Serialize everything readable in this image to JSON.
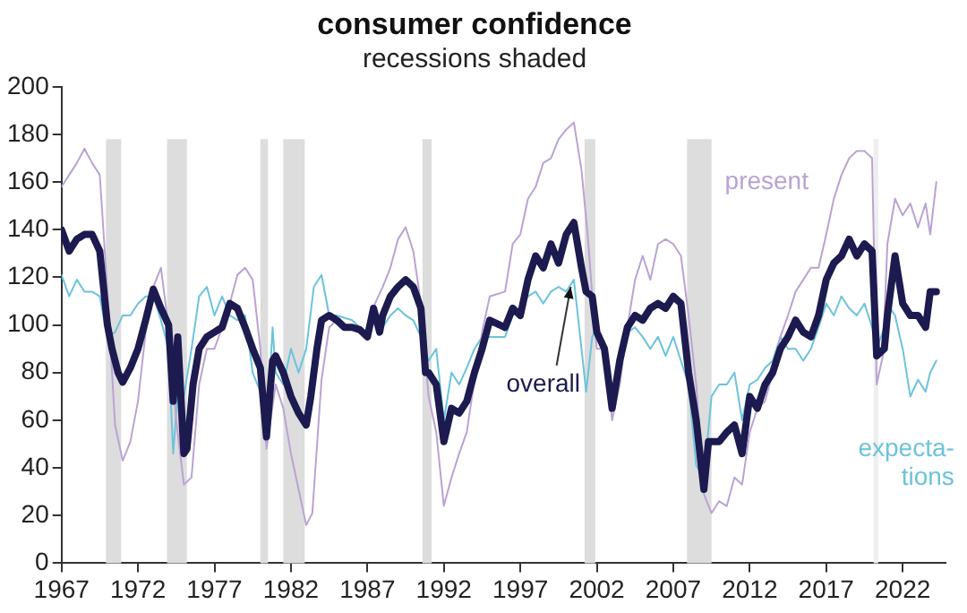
{
  "chart_data": {
    "type": "line",
    "title": "consumer confidence",
    "subtitle": "recessions shaded",
    "xlim": [
      1967,
      2024.8
    ],
    "xticks": [
      1967,
      1972,
      1977,
      1982,
      1987,
      1992,
      1997,
      2002,
      2007,
      2012,
      2017,
      2022
    ],
    "ylim": [
      0,
      200
    ],
    "yticks": [
      0,
      20,
      40,
      60,
      80,
      100,
      120,
      140,
      160,
      180,
      200
    ],
    "grid": false,
    "legend": false,
    "marker": "none",
    "line_style": "solid",
    "bands": [
      {
        "axis": "x",
        "from": 1969.9,
        "to": 1970.9,
        "color": "#dddddd"
      },
      {
        "axis": "x",
        "from": 1973.9,
        "to": 1975.2,
        "color": "#dddddd"
      },
      {
        "axis": "x",
        "from": 1980.0,
        "to": 1980.5,
        "color": "#dddddd"
      },
      {
        "axis": "x",
        "from": 1981.5,
        "to": 1982.9,
        "color": "#dddddd"
      },
      {
        "axis": "x",
        "from": 1990.6,
        "to": 1991.2,
        "color": "#dddddd"
      },
      {
        "axis": "x",
        "from": 2001.2,
        "to": 2001.9,
        "color": "#dddddd"
      },
      {
        "axis": "x",
        "from": 2007.9,
        "to": 2009.5,
        "color": "#dddddd"
      },
      {
        "axis": "x",
        "from": 2020.1,
        "to": 2020.4,
        "color": "#eeeeee"
      }
    ],
    "series": [
      {
        "name": "overall",
        "color": "#1c1a4f",
        "x": [
          1967,
          1967.5,
          1968,
          1968.5,
          1969,
          1969.5,
          1970,
          1970.3,
          1970.7,
          1971,
          1971.5,
          1972,
          1972.5,
          1973,
          1973.5,
          1974,
          1974.3,
          1974.6,
          1975,
          1975.2,
          1975.6,
          1976,
          1976.5,
          1977,
          1977.5,
          1978,
          1978.5,
          1979,
          1979.5,
          1980,
          1980.4,
          1980.8,
          1981,
          1981.5,
          1982,
          1982.5,
          1983,
          1983.3,
          1983.7,
          1984,
          1984.5,
          1985,
          1985.5,
          1986,
          1986.5,
          1987,
          1987.4,
          1987.8,
          1988,
          1988.5,
          1989,
          1989.5,
          1990,
          1990.5,
          1990.8,
          1991,
          1991.5,
          1992,
          1992.5,
          1993,
          1993.5,
          1994,
          1994.5,
          1995,
          1996,
          1996.5,
          1997,
          1997.5,
          1998,
          1998.5,
          1999,
          1999.5,
          2000,
          2000.5,
          2001,
          2001.3,
          2001.7,
          2002,
          2002.5,
          2003,
          2003.5,
          2004,
          2004.5,
          2005,
          2005.5,
          2006,
          2006.5,
          2007,
          2007.5,
          2008,
          2008.5,
          2009,
          2009.3,
          2010,
          2010.5,
          2011,
          2011.5,
          2012,
          2012.5,
          2013,
          2013.5,
          2014,
          2014.5,
          2015,
          2015.5,
          2016,
          2016.5,
          2017,
          2017.5,
          2018,
          2018.5,
          2019,
          2019.5,
          2020,
          2020.3,
          2020.8,
          2021,
          2021.5,
          2022,
          2022.5,
          2023,
          2023.5,
          2023.8,
          2024.2
        ],
        "values": [
          140,
          131,
          136,
          138,
          138,
          131,
          100,
          90,
          80,
          76,
          82,
          90,
          102,
          115,
          107,
          100,
          68,
          95,
          46,
          48,
          75,
          90,
          95,
          97,
          99,
          109,
          107,
          99,
          90,
          82,
          53,
          85,
          87,
          80,
          70,
          63,
          58,
          70,
          90,
          102,
          104,
          102,
          99,
          99,
          98,
          95,
          107,
          97,
          104,
          112,
          116,
          119,
          116,
          107,
          80,
          80,
          75,
          51,
          65,
          63,
          68,
          80,
          90,
          102,
          99,
          107,
          104,
          119,
          129,
          124,
          134,
          126,
          138,
          143,
          124,
          114,
          112,
          97,
          90,
          65,
          85,
          99,
          104,
          102,
          107,
          109,
          107,
          112,
          109,
          80,
          60,
          31,
          51,
          51,
          55,
          58,
          46,
          70,
          65,
          75,
          80,
          90,
          95,
          102,
          97,
          95,
          104,
          119,
          126,
          129,
          136,
          129,
          134,
          131,
          87,
          90,
          104,
          129,
          109,
          104,
          104,
          99,
          114,
          114
        ]
      },
      {
        "name": "present",
        "color": "#b9a3d3",
        "x": [
          1967,
          1967.5,
          1968,
          1968.5,
          1969,
          1969.5,
          1970,
          1970.5,
          1971,
          1971.5,
          1972,
          1972.5,
          1973,
          1973.5,
          1974,
          1974.5,
          1975,
          1975.5,
          1976,
          1976.5,
          1977,
          1977.5,
          1978,
          1978.5,
          1979,
          1979.5,
          1980,
          1980.4,
          1981,
          1981.5,
          1982,
          1982.5,
          1983,
          1983.4,
          1984,
          1984.5,
          1985,
          1985.5,
          1986,
          1987,
          1987.5,
          1988,
          1988.5,
          1989,
          1989.5,
          1990,
          1990.5,
          1991,
          1991.5,
          1992,
          1992.5,
          1993,
          1993.5,
          1994,
          1994.5,
          1995,
          1996,
          1996.5,
          1997,
          1997.5,
          1998,
          1998.5,
          1999,
          1999.5,
          2000,
          2000.5,
          2001,
          2001.4,
          2001.8,
          2002,
          2002.5,
          2003,
          2003.5,
          2004,
          2004.5,
          2005,
          2005.5,
          2006,
          2006.5,
          2007,
          2007.5,
          2008,
          2008.5,
          2009,
          2009.5,
          2010,
          2010.5,
          2011,
          2011.5,
          2012,
          2012.5,
          2013,
          2013.5,
          2014,
          2014.5,
          2015,
          2015.5,
          2016,
          2016.5,
          2017,
          2017.5,
          2018,
          2018.5,
          2019,
          2019.5,
          2020,
          2020.3,
          2020.7,
          2021,
          2021.5,
          2022,
          2022.5,
          2023,
          2023.5,
          2023.8,
          2024.2
        ],
        "values": [
          158,
          163,
          168,
          174,
          168,
          163,
          114,
          58,
          43,
          51,
          68,
          97,
          116,
          124,
          99,
          60,
          33,
          36,
          75,
          90,
          90,
          99,
          109,
          121,
          124,
          119,
          90,
          48,
          75,
          65,
          46,
          31,
          16,
          21,
          77,
          99,
          102,
          99,
          99,
          95,
          109,
          116,
          124,
          136,
          141,
          131,
          109,
          70,
          55,
          24,
          36,
          46,
          55,
          77,
          97,
          112,
          114,
          134,
          138,
          153,
          158,
          168,
          170,
          178,
          182,
          185,
          165,
          138,
          104,
          90,
          90,
          60,
          75,
          99,
          119,
          129,
          119,
          134,
          136,
          134,
          129,
          104,
          75,
          29,
          21,
          26,
          24,
          36,
          33,
          55,
          65,
          68,
          80,
          95,
          104,
          114,
          119,
          124,
          124,
          138,
          153,
          163,
          170,
          173,
          173,
          170,
          75,
          87,
          134,
          153,
          146,
          151,
          141,
          151,
          138,
          160
        ]
      },
      {
        "name": "expecta-\ntions",
        "color": "#6cc3dc",
        "x": [
          1967,
          1967.5,
          1968,
          1968.5,
          1969,
          1969.5,
          1970,
          1970.5,
          1971,
          1971.5,
          1972,
          1972.5,
          1973,
          1973.5,
          1974,
          1974.3,
          1974.7,
          1975,
          1975.5,
          1976,
          1976.5,
          1977,
          1977.5,
          1978,
          1978.5,
          1979,
          1979.5,
          1980,
          1980.4,
          1980.8,
          1981,
          1981.5,
          1982,
          1982.5,
          1983,
          1983.5,
          1984,
          1984.5,
          1985,
          1986,
          1986.5,
          1987,
          1987.5,
          1988,
          1988.5,
          1989,
          1989.5,
          1990,
          1990.5,
          1991,
          1991.5,
          1992,
          1992.5,
          1993,
          1993.5,
          1994,
          1994.5,
          1995,
          1996,
          1996.5,
          1997,
          1997.5,
          1998,
          1998.5,
          1999,
          1999.5,
          2000,
          2000.5,
          2001,
          2001.3,
          2001.7,
          2002,
          2002.5,
          2003,
          2003.5,
          2004,
          2004.5,
          2005,
          2005.5,
          2006,
          2006.5,
          2007,
          2007.5,
          2008,
          2008.5,
          2009,
          2009.5,
          2010,
          2010.5,
          2011,
          2011.5,
          2012,
          2012.5,
          2013,
          2013.5,
          2014,
          2014.5,
          2015,
          2015.5,
          2016,
          2016.5,
          2017,
          2017.5,
          2018,
          2018.5,
          2019,
          2019.5,
          2020,
          2020.3,
          2020.8,
          2021,
          2021.5,
          2022,
          2022.5,
          2023,
          2023.5,
          2023.8,
          2024.2
        ],
        "values": [
          121,
          112,
          119,
          114,
          114,
          112,
          95,
          97,
          104,
          104,
          109,
          112,
          112,
          102,
          90,
          46,
          80,
          70,
          90,
          112,
          116,
          104,
          112,
          104,
          102,
          104,
          80,
          72,
          51,
          99,
          80,
          75,
          90,
          80,
          90,
          116,
          121,
          104,
          104,
          102,
          99,
          97,
          107,
          99,
          104,
          107,
          104,
          102,
          95,
          85,
          90,
          60,
          80,
          75,
          82,
          90,
          95,
          95,
          95,
          104,
          107,
          112,
          114,
          109,
          114,
          116,
          114,
          119,
          90,
          72,
          95,
          99,
          90,
          70,
          90,
          97,
          99,
          95,
          90,
          95,
          87,
          95,
          85,
          75,
          41,
          36,
          70,
          75,
          75,
          80,
          60,
          75,
          77,
          82,
          85,
          95,
          90,
          90,
          85,
          90,
          99,
          109,
          104,
          112,
          107,
          104,
          109,
          99,
          90,
          99,
          109,
          104,
          90,
          70,
          77,
          72,
          80,
          85
        ]
      }
    ]
  }
}
